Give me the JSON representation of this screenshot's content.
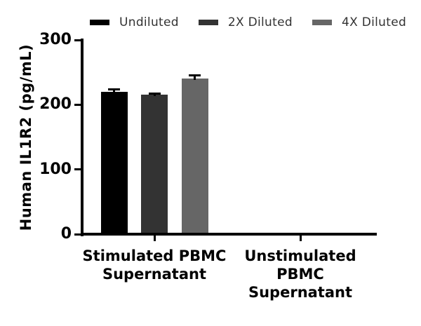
{
  "figure": {
    "background": "#ffffff"
  },
  "chart_data": {
    "type": "bar",
    "title": "",
    "xlabel": "",
    "ylabel": "Human IL1R2 (pg/mL)",
    "ylim": [
      0,
      300
    ],
    "yticks": [
      0,
      100,
      200,
      300
    ],
    "grid": false,
    "legend_position": "top",
    "axis_color": "#000000",
    "error_bar_color": "#000000",
    "categories": [
      "Stimulated PBMC\nSupernatant",
      "Unstimulated\nPBMC\nSupernatant"
    ],
    "series": [
      {
        "name": "Undiluted",
        "color": "#000000",
        "values": [
          220,
          null
        ],
        "errors": [
          5,
          null
        ]
      },
      {
        "name": "2X Diluted",
        "color": "#333333",
        "values": [
          215,
          null
        ],
        "errors": [
          4,
          null
        ]
      },
      {
        "name": "4X Diluted",
        "color": "#666666",
        "values": [
          240,
          null
        ],
        "errors": [
          7,
          null
        ]
      }
    ]
  }
}
